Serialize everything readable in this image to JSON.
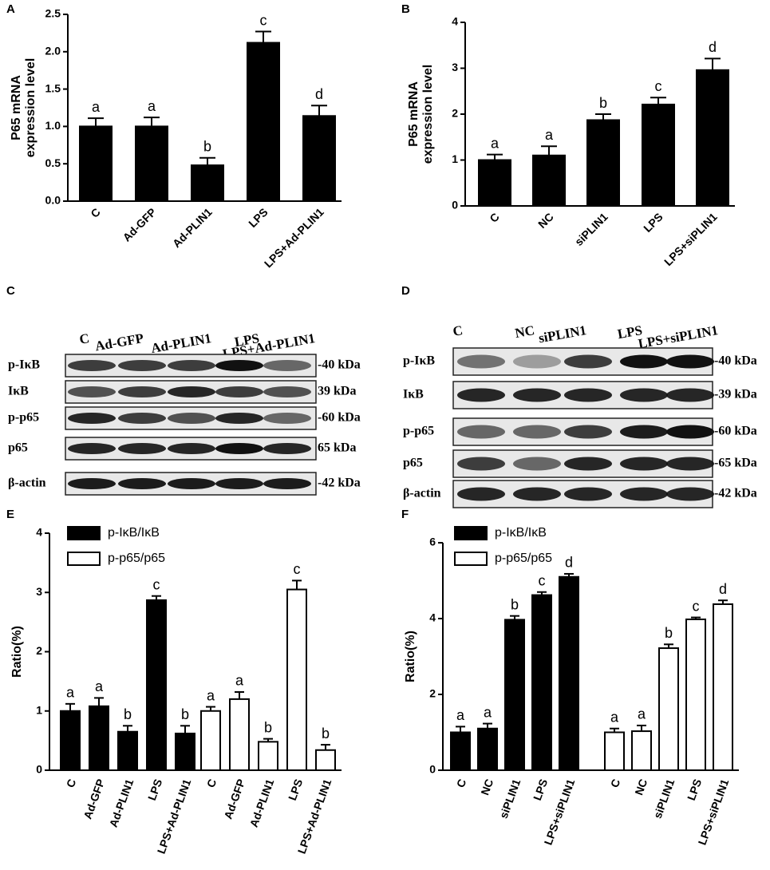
{
  "chart_data": [
    {
      "type": "bar",
      "panel": "A",
      "ylabel": [
        "P65 mRNA",
        "expression level"
      ],
      "categories": [
        "C",
        "Ad-GFP",
        "Ad-PLIN1",
        "LPS",
        "LPS+Ad-PLIN1"
      ],
      "values": [
        1.0,
        1.0,
        0.48,
        2.12,
        1.14
      ],
      "errors": [
        0.11,
        0.12,
        0.1,
        0.15,
        0.14
      ],
      "annotations": [
        "a",
        "a",
        "b",
        "c",
        "d"
      ],
      "color": "#000000",
      "ylim": [
        0,
        2.5
      ],
      "yticks": [
        {
          "value": 0,
          "label": "0.0"
        },
        0.5,
        {
          "value": 1,
          "label": "1.0"
        },
        1.5,
        {
          "value": 2,
          "label": "2.0"
        },
        2.5
      ]
    },
    {
      "type": "bar",
      "panel": "B",
      "ylabel": [
        "P65 mRNA",
        "expression level"
      ],
      "categories": [
        "C",
        "NC",
        "siPLIN1",
        "LPS",
        "LPS+siPLIN1"
      ],
      "values": [
        1.0,
        1.1,
        1.87,
        2.21,
        2.96
      ],
      "errors": [
        0.12,
        0.2,
        0.13,
        0.15,
        0.25
      ],
      "annotations": [
        "a",
        "a",
        "b",
        "c",
        "d"
      ],
      "color": "#000000",
      "ylim": [
        0,
        4
      ],
      "yticks": [
        0,
        1,
        2,
        3,
        4
      ]
    },
    {
      "type": "grouped_bar",
      "panel": "E",
      "ylabel": [
        "Ratio(%)"
      ],
      "categories": [
        "C",
        "Ad-GFP",
        "Ad-PLIN1",
        "LPS",
        "LPS+Ad-PLIN1"
      ],
      "series": [
        {
          "name": "p-IκB/IκB",
          "color": "#000000",
          "values": [
            1.0,
            1.08,
            0.65,
            2.87,
            0.62
          ],
          "errors": [
            0.12,
            0.14,
            0.1,
            0.07,
            0.13
          ],
          "annotations": [
            "a",
            "a",
            "b",
            "c",
            "b"
          ]
        },
        {
          "name": "p-p65/p65",
          "color": "#ffffff",
          "values": [
            1.0,
            1.2,
            0.48,
            3.05,
            0.34
          ],
          "errors": [
            0.07,
            0.12,
            0.05,
            0.15,
            0.09
          ],
          "annotations": [
            "a",
            "a",
            "b",
            "c",
            "b"
          ]
        }
      ],
      "ylim": [
        0,
        4
      ],
      "yticks": [
        0,
        1,
        2,
        3,
        4
      ]
    },
    {
      "type": "grouped_bar",
      "panel": "F",
      "ylabel": [
        "Ratio(%)"
      ],
      "categories": [
        "C",
        "NC",
        "siPLIN1",
        "LPS",
        "LPS+siPLIN1"
      ],
      "series": [
        {
          "name": "p-IκB/IκB",
          "color": "#000000",
          "values": [
            1.0,
            1.1,
            3.97,
            4.62,
            5.1
          ],
          "errors": [
            0.15,
            0.13,
            0.1,
            0.08,
            0.08
          ],
          "annotations": [
            "a",
            "a",
            "b",
            "c",
            "d"
          ]
        },
        {
          "name": "p-p65/p65",
          "color": "#ffffff",
          "values": [
            1.0,
            1.03,
            3.22,
            3.98,
            4.38
          ],
          "errors": [
            0.1,
            0.15,
            0.1,
            0.05,
            0.1
          ],
          "annotations": [
            "a",
            "a",
            "b",
            "c",
            "d"
          ]
        }
      ],
      "ylim": [
        0,
        6
      ],
      "yticks": [
        0,
        2,
        4,
        6
      ]
    }
  ],
  "blots": [
    {
      "panel": "C",
      "lanes": [
        "C",
        "Ad-GFP",
        "Ad-PLIN1",
        "LPS",
        "LPS+Ad-PLIN1"
      ],
      "rows": [
        {
          "label": "p-IκB",
          "size": "-40 kDa"
        },
        {
          "label": "IκB",
          "size": "39 kDa"
        },
        {
          "label": "p-p65",
          "size": "-60 kDa"
        },
        {
          "label": "p65",
          "size": "65 kDa"
        },
        {
          "label": "β-actin",
          "size": "-42 kDa"
        }
      ]
    },
    {
      "panel": "D",
      "lanes": [
        "C",
        "NC",
        "siPLIN1",
        "LPS",
        "LPS+siPLIN1"
      ],
      "rows": [
        {
          "label": "p-IκB",
          "size": "-40 kDa"
        },
        {
          "label": "IκB",
          "size": "-39 kDa"
        },
        {
          "label": "p-p65",
          "size": "-60 kDa"
        },
        {
          "label": "p65",
          "size": "-65 kDa"
        },
        {
          "label": "β-actin",
          "size": "-42 kDa"
        }
      ]
    }
  ]
}
